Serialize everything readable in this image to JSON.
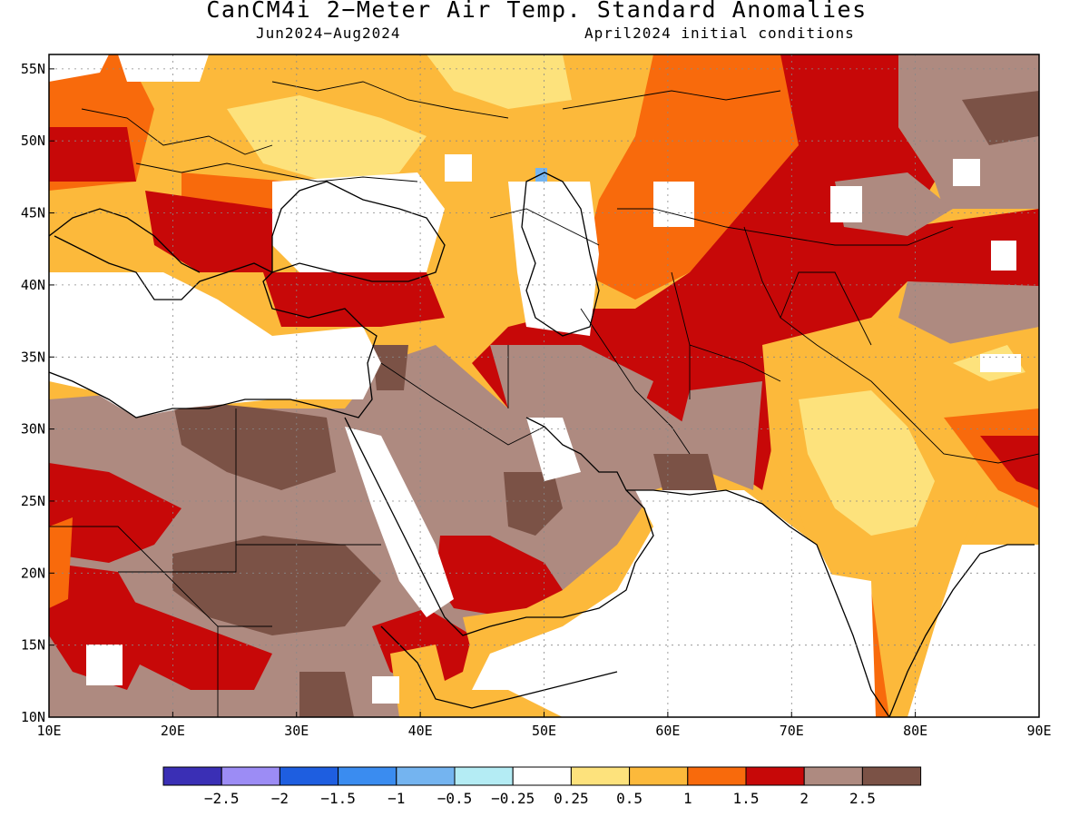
{
  "title": "CanCM4i 2−Meter Air Temp. Standard Anomalies",
  "subtitle_left": "Jun2024−Aug2024",
  "subtitle_right": "April2024 initial conditions",
  "map": {
    "lon_range": [
      10,
      90
    ],
    "lat_range": [
      10,
      56
    ],
    "x_ticks": [
      "10E",
      "20E",
      "30E",
      "40E",
      "50E",
      "60E",
      "70E",
      "80E",
      "90E"
    ],
    "y_ticks": [
      "10N",
      "15N",
      "20N",
      "25N",
      "30N",
      "35N",
      "40N",
      "45N",
      "50N",
      "55N"
    ],
    "grid": "dotted"
  },
  "colorbar": {
    "colors": [
      "#3a2fb5",
      "#9c8cf5",
      "#1e5ee0",
      "#3a8cf0",
      "#74b4f0",
      "#b4ecf4",
      "#ffffff",
      "#fde27c",
      "#fcb93b",
      "#f86a0c",
      "#c70808",
      "#ae8a80",
      "#7b5246"
    ],
    "labels": [
      "−2.5",
      "−2",
      "−1.5",
      "−1",
      "−0.5",
      "−0.25",
      "0.25",
      "0.5",
      "1",
      "1.5",
      "2",
      "2.5"
    ]
  }
}
